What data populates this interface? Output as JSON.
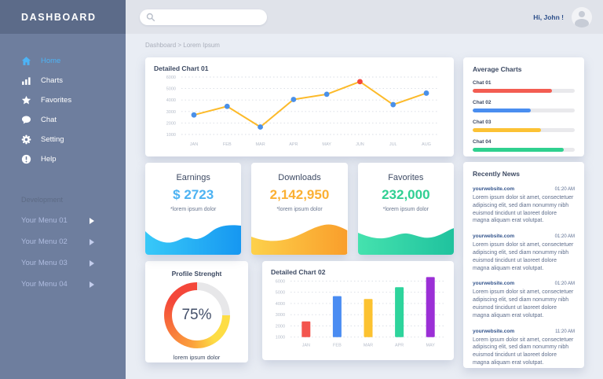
{
  "sidebar": {
    "title": "DASHBOARD",
    "menu": [
      {
        "label": "Home",
        "icon": "home-icon",
        "active": true
      },
      {
        "label": "Charts",
        "icon": "charts-icon",
        "active": false
      },
      {
        "label": "Favorites",
        "icon": "star-icon",
        "active": false
      },
      {
        "label": "Chat",
        "icon": "chat-icon",
        "active": false
      },
      {
        "label": "Setting",
        "icon": "gear-icon",
        "active": false
      },
      {
        "label": "Help",
        "icon": "help-icon",
        "active": false
      }
    ],
    "section_label": "Development",
    "dev_menu": [
      {
        "label": "Your Menu 01"
      },
      {
        "label": "Your Menu 02"
      },
      {
        "label": "Your Menu 03"
      },
      {
        "label": "Your Menu 04"
      }
    ]
  },
  "topbar": {
    "search_placeholder": "",
    "greeting": "Hi, John !"
  },
  "breadcrumb": "Dashboard > Lorem Ipsum",
  "stats": [
    {
      "title": "Earnings",
      "value": "$ 2723",
      "note": "*lorem ipsum dolor",
      "value_color": "#4cb2f2",
      "wave_colors": [
        "#38c9f8",
        "#1697f1"
      ]
    },
    {
      "title": "Downloads",
      "value": "2,142,950",
      "note": "*lorem ipsum dolor",
      "value_color": "#fbb033",
      "wave_colors": [
        "#fdd14b",
        "#f99e2b"
      ]
    },
    {
      "title": "Favorites",
      "value": "232,000",
      "note": "*lorem ipsum dolor",
      "value_color": "#2fcf92",
      "wave_colors": [
        "#45e2ae",
        "#1fc29e"
      ]
    }
  ],
  "news": {
    "title": "Recently News",
    "items": [
      {
        "site": "yourwebsite.com",
        "time": "01:20 AM",
        "body": "Lorem ipsum dolor sit amet, consectetuer adipiscing elit, sed diam nonummy nibh euismod tincidunt ut laoreet dolore magna aliquam erat volutpat."
      },
      {
        "site": "yourwebsite.com",
        "time": "01:20 AM",
        "body": "Lorem ipsum dolor sit amet, consectetuer adipiscing elit, sed diam nonummy nibh euismod tincidunt ut laoreet dolore magna aliquam erat volutpat."
      },
      {
        "site": "yourwebsite.com",
        "time": "01:20 AM",
        "body": "Lorem ipsum dolor sit amet, consectetuer adipiscing elit, sed diam nonummy nibh euismod tincidunt ut laoreet dolore magna aliquam erat volutpat."
      },
      {
        "site": "yourwebsite.com",
        "time": "11:20 AM",
        "body": "Lorem ipsum dolor sit amet, consectetuer adipiscing elit, sed diam nonummy nibh euismod tincidunt ut laoreet dolore magna aliquam erat volutpat."
      }
    ]
  },
  "chart_data": [
    {
      "id": "detailed-chart-01",
      "type": "line",
      "title": "Detailed Chart 01",
      "categories": [
        "JAN",
        "FEB",
        "MAR",
        "APR",
        "MAY",
        "JUN",
        "JUL",
        "AUG"
      ],
      "values": [
        2700,
        3450,
        1650,
        4050,
        4500,
        5600,
        3600,
        4600
      ],
      "highlight_index": 5,
      "ylim": [
        1000,
        6000
      ],
      "yticks": [
        1000,
        2000,
        3000,
        4000,
        5000,
        6000
      ],
      "grid": "dotted",
      "legend": "none",
      "line_color": "#fcba2a",
      "point_color": "#4a90e8",
      "highlight_color": "#f4473c"
    },
    {
      "id": "average-charts",
      "type": "progress",
      "title": "Average Charts",
      "items": [
        {
          "label": "Chat 01",
          "percent": 78,
          "color": "#f35d52"
        },
        {
          "label": "Chat 02",
          "percent": 57,
          "color": "#4a8ef0"
        },
        {
          "label": "Chat 03",
          "percent": 67,
          "color": "#fcc234"
        },
        {
          "label": "Chat 04",
          "percent": 89,
          "color": "#2fd08f"
        }
      ],
      "track_color": "#e9e9ec"
    },
    {
      "id": "profile-strength",
      "type": "donut",
      "title": "Profile Strenght",
      "value": 75,
      "label": "75%",
      "caption": "lorem ipsum dolor",
      "colors": [
        "#fddd45",
        "#fba03c",
        "#f4473a"
      ],
      "track_color": "#e7e7e9"
    },
    {
      "id": "detailed-chart-02",
      "type": "bar",
      "title": "Detailed Chart 02",
      "categories": [
        "JAN",
        "FEB",
        "MAR",
        "APR",
        "MAY"
      ],
      "values": [
        2400,
        4650,
        4400,
        5450,
        6350
      ],
      "bar_colors": [
        "#f3554e",
        "#4a8cf2",
        "#fcc230",
        "#2ed49c",
        "#9b2fd6"
      ],
      "ylim": [
        1000,
        6000
      ],
      "yticks": [
        1000,
        2000,
        3000,
        4000,
        5000,
        6000
      ],
      "grid": "dotted",
      "legend": "none"
    }
  ]
}
